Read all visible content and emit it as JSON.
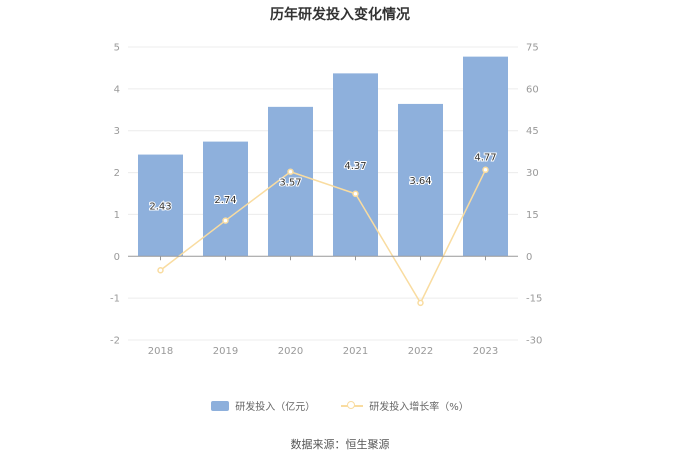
{
  "chart_data": {
    "type": "bar",
    "title": "历年研发投入变化情况",
    "categories": [
      "2018",
      "2019",
      "2020",
      "2021",
      "2022",
      "2023"
    ],
    "series": [
      {
        "name": "研发投入（亿元）",
        "type": "bar",
        "axis": "left",
        "values": [
          2.43,
          2.74,
          3.57,
          4.37,
          3.64,
          4.77
        ],
        "labels": [
          "2.43",
          "2.74",
          "3.57",
          "4.37",
          "3.64",
          "4.77"
        ],
        "color": "#8eb0dc"
      },
      {
        "name": "研发投入增长率（%）",
        "type": "line",
        "axis": "right",
        "values": [
          -5,
          12.8,
          30.3,
          22.4,
          -16.7,
          31.0
        ],
        "color": "#f9dca0"
      }
    ],
    "y_left": {
      "ylim": [
        -2,
        5
      ],
      "ticks": [
        "5",
        "4",
        "3",
        "2",
        "1",
        "0",
        "-1",
        "-2"
      ]
    },
    "y_right": {
      "ylim": [
        -30,
        75
      ],
      "ticks": [
        "75",
        "60",
        "45",
        "30",
        "15",
        "0",
        "-15",
        "-30"
      ]
    },
    "grid": true,
    "legend_position": "bottom"
  },
  "source": "数据来源：恒生聚源"
}
